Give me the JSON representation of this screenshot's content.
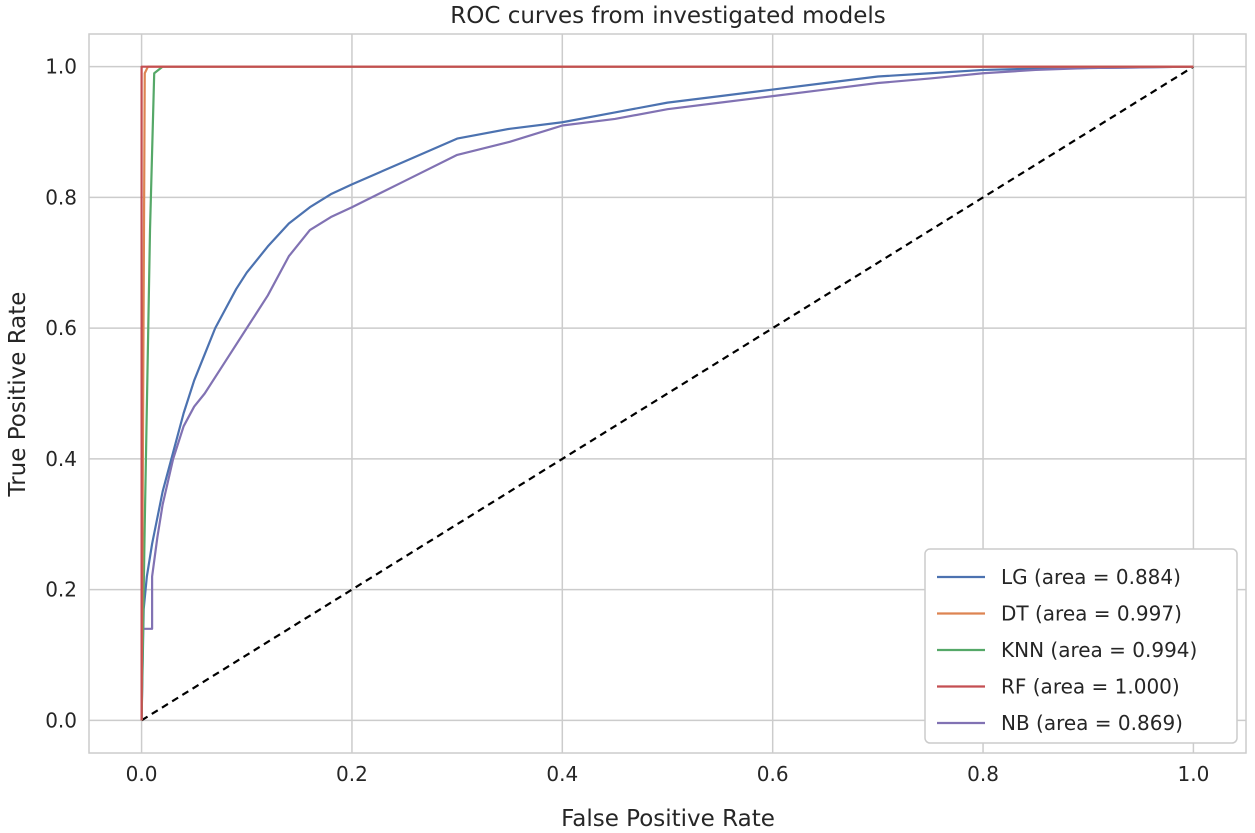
{
  "chart_data": {
    "type": "line",
    "title": "ROC curves from investigated models",
    "xlabel": "False Positive Rate",
    "ylabel": "True Positive Rate",
    "xlim": [
      -0.05,
      1.05
    ],
    "ylim": [
      -0.05,
      1.05
    ],
    "xticks": [
      "0.0",
      "0.2",
      "0.4",
      "0.6",
      "0.8",
      "1.0"
    ],
    "yticks": [
      "0.0",
      "0.2",
      "0.4",
      "0.6",
      "0.8",
      "1.0"
    ],
    "grid": true,
    "legend_position": "lower-right",
    "series": [
      {
        "name": "LG (area = 0.884)",
        "color": "#4c72b0",
        "x": [
          0.0,
          0.002,
          0.005,
          0.01,
          0.015,
          0.02,
          0.03,
          0.04,
          0.05,
          0.06,
          0.07,
          0.08,
          0.09,
          0.1,
          0.12,
          0.14,
          0.16,
          0.18,
          0.2,
          0.25,
          0.3,
          0.35,
          0.4,
          0.45,
          0.5,
          0.55,
          0.6,
          0.65,
          0.7,
          0.75,
          0.8,
          0.85,
          0.9,
          0.95,
          1.0
        ],
        "y": [
          0.0,
          0.17,
          0.22,
          0.27,
          0.31,
          0.35,
          0.41,
          0.47,
          0.52,
          0.56,
          0.6,
          0.63,
          0.66,
          0.685,
          0.725,
          0.76,
          0.785,
          0.805,
          0.82,
          0.855,
          0.89,
          0.905,
          0.915,
          0.93,
          0.945,
          0.955,
          0.965,
          0.975,
          0.985,
          0.99,
          0.995,
          0.997,
          0.998,
          0.999,
          1.0
        ]
      },
      {
        "name": "DT (area = 0.997)",
        "color": "#dd8452",
        "x": [
          0.0,
          0.003,
          0.006,
          1.0
        ],
        "y": [
          0.0,
          0.99,
          1.0,
          1.0
        ]
      },
      {
        "name": "KNN (area = 0.994)",
        "color": "#55a868",
        "x": [
          0.0,
          0.003,
          0.008,
          0.012,
          0.02,
          1.0
        ],
        "y": [
          0.0,
          0.3,
          0.75,
          0.99,
          1.0,
          1.0
        ]
      },
      {
        "name": "RF (area = 1.000)",
        "color": "#c44e52",
        "x": [
          0.0,
          0.0,
          1.0
        ],
        "y": [
          0.0,
          1.0,
          1.0
        ]
      },
      {
        "name": "NB (area = 0.869)",
        "color": "#8172b3",
        "x": [
          0.0,
          0.0,
          0.01,
          0.01,
          0.015,
          0.02,
          0.03,
          0.04,
          0.05,
          0.06,
          0.08,
          0.1,
          0.12,
          0.14,
          0.16,
          0.18,
          0.2,
          0.25,
          0.3,
          0.35,
          0.4,
          0.45,
          0.5,
          0.55,
          0.6,
          0.65,
          0.7,
          0.75,
          0.8,
          0.85,
          0.9,
          0.95,
          1.0
        ],
        "y": [
          0.0,
          0.14,
          0.14,
          0.22,
          0.28,
          0.33,
          0.4,
          0.45,
          0.48,
          0.5,
          0.55,
          0.6,
          0.65,
          0.71,
          0.75,
          0.77,
          0.785,
          0.825,
          0.865,
          0.885,
          0.91,
          0.92,
          0.935,
          0.945,
          0.955,
          0.965,
          0.975,
          0.982,
          0.99,
          0.995,
          0.998,
          0.999,
          1.0
        ]
      }
    ],
    "reference_line": {
      "style": "dashed",
      "color": "#000000",
      "x": [
        0,
        1
      ],
      "y": [
        0,
        1
      ]
    }
  }
}
